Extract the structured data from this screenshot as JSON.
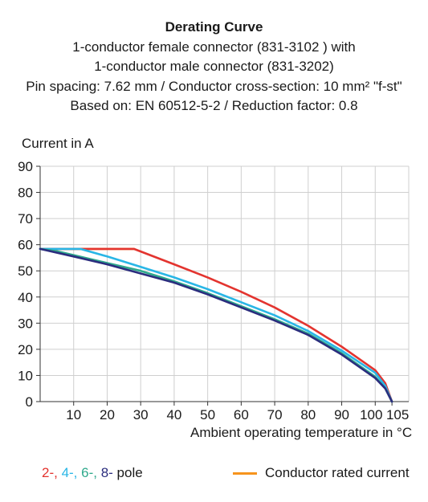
{
  "chart_data": {
    "type": "line",
    "title": "Derating Curve",
    "subtitle_lines": [
      "1-conductor female connector (831-3102 ) with",
      "1-conductor male connector (831-3202)",
      "Pin spacing: 7.62 mm / Conductor cross-section: 10 mm² \"f-st\"",
      "Based on: EN 60512-5-2 / Reduction factor: 0.8"
    ],
    "ylabel": "Current in A",
    "xlabel": "Ambient operating temperature in °C",
    "xlim": [
      0,
      110
    ],
    "ylim": [
      0,
      90
    ],
    "x_ticks": [
      10,
      20,
      30,
      40,
      50,
      60,
      70,
      80,
      90,
      100,
      105
    ],
    "y_ticks": [
      0,
      10,
      20,
      30,
      40,
      50,
      60,
      70,
      80,
      90
    ],
    "grid": true,
    "series": [
      {
        "name": "Conductor rated current",
        "color": "#f7941d",
        "x": [
          0,
          28
        ],
        "y": [
          58.4,
          58.4
        ]
      },
      {
        "name": "2",
        "color": "#e3342f",
        "x": [
          0,
          28,
          40,
          50,
          60,
          70,
          80,
          90,
          100,
          103,
          105
        ],
        "y": [
          58.4,
          58.4,
          52.5,
          47.5,
          42,
          36,
          29,
          21,
          12,
          7,
          0
        ]
      },
      {
        "name": "4",
        "color": "#29b6e6",
        "x": [
          0,
          12,
          20,
          30,
          40,
          50,
          60,
          70,
          80,
          90,
          100,
          103,
          105
        ],
        "y": [
          58.4,
          58.4,
          55.5,
          51.5,
          47.5,
          43,
          38,
          33,
          27,
          19.5,
          11,
          6,
          0
        ]
      },
      {
        "name": "6",
        "color": "#2fa98c",
        "x": [
          0,
          5,
          10,
          20,
          30,
          40,
          50,
          60,
          70,
          80,
          90,
          100,
          103,
          105
        ],
        "y": [
          58.4,
          57.5,
          56,
          53,
          50,
          46,
          41.5,
          36.5,
          31.5,
          26,
          18.5,
          9.5,
          5,
          0
        ]
      },
      {
        "name": "8",
        "color": "#2b2d7e",
        "x": [
          0,
          10,
          20,
          30,
          40,
          50,
          60,
          70,
          80,
          90,
          100,
          103,
          105
        ],
        "y": [
          58.4,
          55.5,
          52.5,
          49,
          45.5,
          41,
          36,
          31,
          25.5,
          18,
          9,
          5,
          0
        ]
      }
    ],
    "legend": {
      "position": "bottom",
      "poles_text": [
        {
          "text": "2-, ",
          "color": "#e3342f"
        },
        {
          "text": "4-, ",
          "color": "#29b6e6"
        },
        {
          "text": "6-, ",
          "color": "#2fa98c"
        },
        {
          "text": "8-",
          "color": "#2b2d7e"
        },
        {
          "text": " pole",
          "color": "#1a1a1a"
        }
      ],
      "rated_label": "Conductor rated current",
      "rated_color": "#f7941d"
    }
  }
}
